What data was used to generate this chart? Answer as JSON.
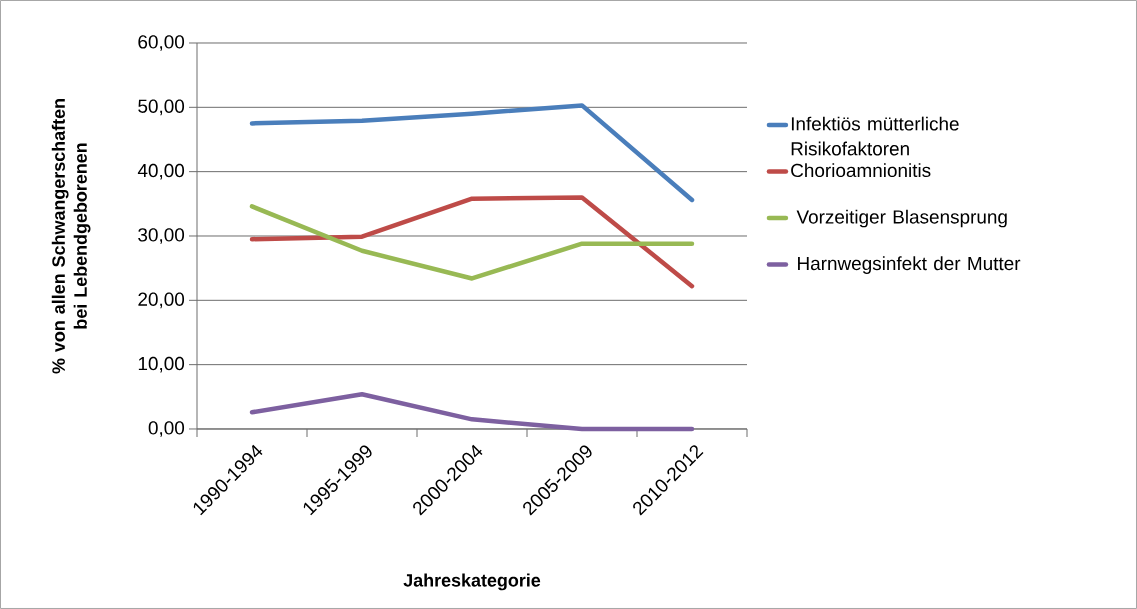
{
  "chart_data": {
    "type": "line",
    "xlabel": "Jahreskategorie",
    "ylabel": "% von allen Schwangerschaften bei Lebendgeborenen",
    "categories": [
      "1990-1994",
      "1995-1999",
      "2000-2004",
      "2005-2009",
      "2010-2012"
    ],
    "series": [
      {
        "name": "Infektiös mütterliche Risikofaktoren",
        "color": "#4a7ebb",
        "values": [
          47.5,
          47.9,
          49.0,
          50.3,
          35.6
        ]
      },
      {
        "name": "Chorioamnionitis",
        "color": "#be4b48",
        "values": [
          29.5,
          29.9,
          35.8,
          36.0,
          22.2
        ]
      },
      {
        "name": " Vorzeitiger Blasensprung",
        "color": "#98b954",
        "values": [
          34.6,
          27.7,
          23.4,
          28.8,
          28.8
        ]
      },
      {
        "name": " Harnwegsinfekt der Mutter",
        "color": "#7d60a0",
        "values": [
          2.6,
          5.4,
          1.5,
          0,
          0
        ]
      }
    ],
    "ylim": [
      0,
      60
    ],
    "yticks": [
      {
        "value": 0,
        "label": "0,00"
      },
      {
        "value": 10,
        "label": "10,00"
      },
      {
        "value": 20,
        "label": "20,00"
      },
      {
        "value": 30,
        "label": "30,00"
      },
      {
        "value": 40,
        "label": "40,00"
      },
      {
        "value": 50,
        "label": "50,00"
      },
      {
        "value": 60,
        "label": "60,00"
      }
    ],
    "grid": "y",
    "legend": "right",
    "marker": "none",
    "line_style": "solid"
  }
}
